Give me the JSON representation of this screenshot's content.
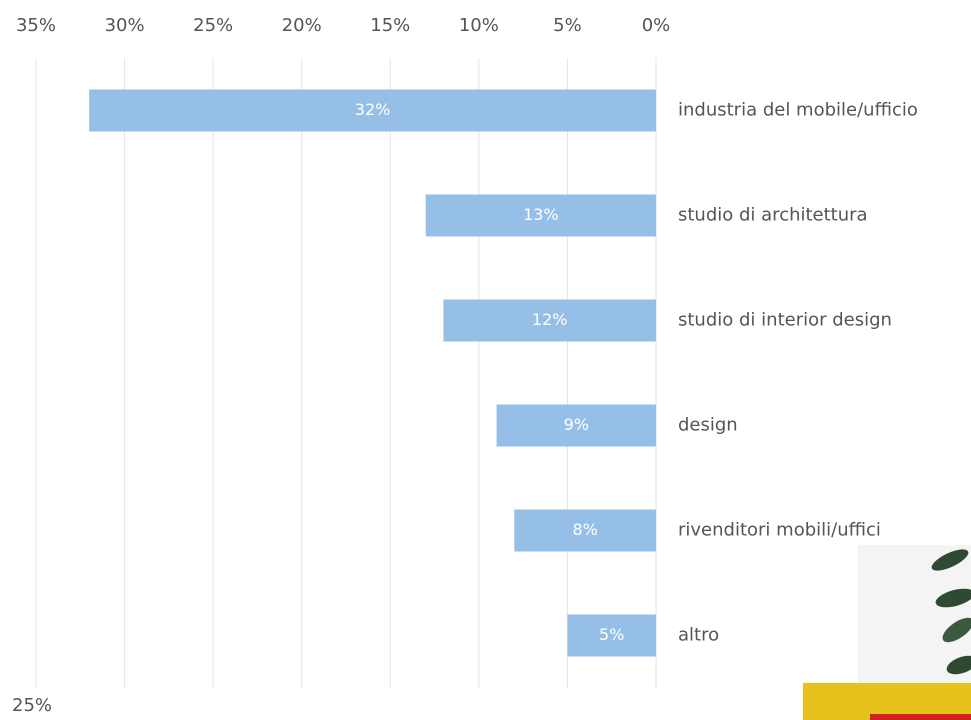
{
  "chart_data": {
    "type": "hbar",
    "categories": [
      "industria del mobile/ufficio",
      "studio di architettura",
      "studio di interior design",
      "design",
      "rivenditori mobili/uffici",
      "altro"
    ],
    "values": [
      32,
      13,
      12,
      9,
      8,
      5
    ],
    "value_labels": [
      "32%",
      "13%",
      "12%",
      "9%",
      "8%",
      "5%"
    ],
    "color": "#96bfe8",
    "xlim": [
      0,
      35
    ],
    "x_reversed": true,
    "xticks": [
      {
        "value": 35,
        "label": "35%"
      },
      {
        "value": 30,
        "label": "30%"
      },
      {
        "value": 25,
        "label": "25%"
      },
      {
        "value": 20,
        "label": "20%"
      },
      {
        "value": 15,
        "label": "15%"
      },
      {
        "value": 10,
        "label": "10%"
      },
      {
        "value": 5,
        "label": "5%"
      },
      {
        "value": 0,
        "label": "0%"
      }
    ],
    "grid": true,
    "annotation": "25%"
  }
}
